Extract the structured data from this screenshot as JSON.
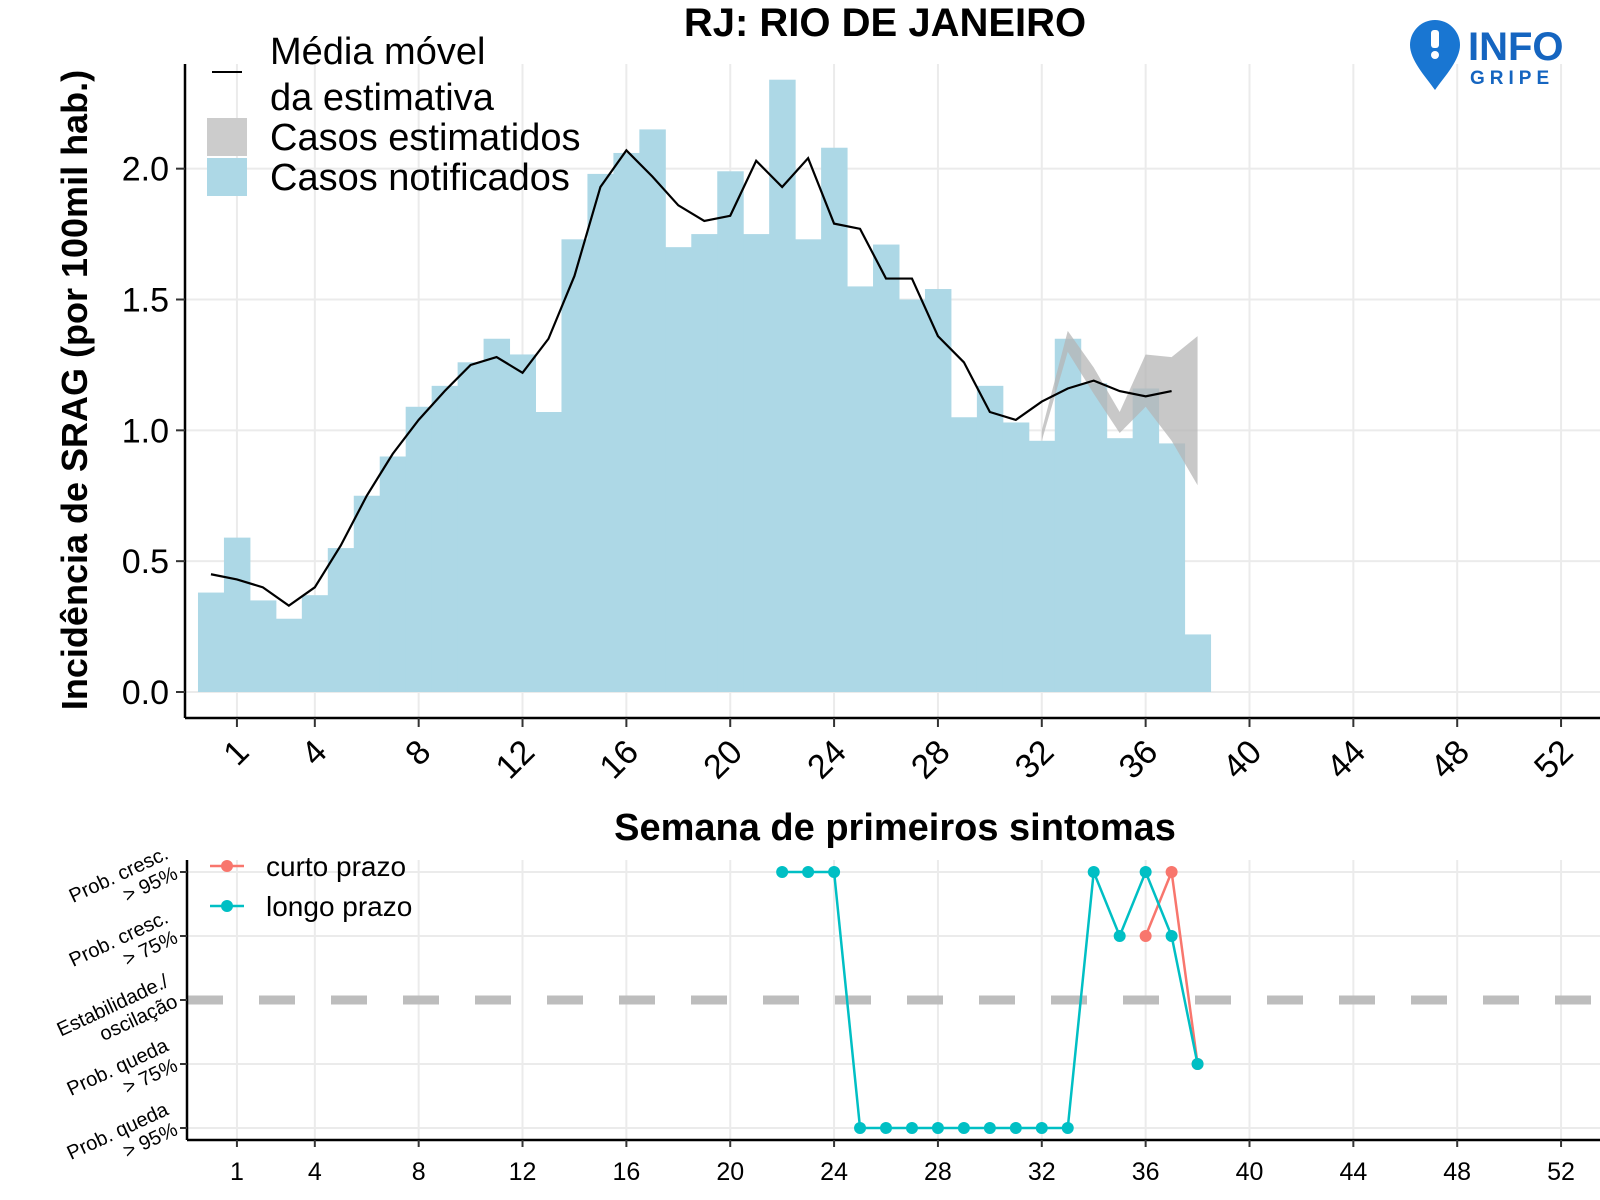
{
  "title": "RJ: RIO DE JANEIRO",
  "logo": {
    "line1": "INFO",
    "line2": "GRIPE",
    "color": "#1565c0"
  },
  "chart_data": [
    {
      "type": "bar",
      "ylabel": "Incidência de SRAG (por 100mil hab.)",
      "xlabel": "Semana de primeiros sintomas",
      "x_ticks": [
        1,
        4,
        8,
        12,
        16,
        20,
        24,
        28,
        32,
        36,
        40,
        44,
        48,
        52
      ],
      "x_range": [
        -1,
        53.5
      ],
      "y_ticks": [
        "0.0",
        "0.5",
        "1.0",
        "1.5",
        "2.0"
      ],
      "ylim": [
        0,
        2.4
      ],
      "grid": true,
      "legend_position": "top-left",
      "legend": {
        "moving_average": "Média móvel\nda estimativa",
        "estimated": "Casos estimatidos",
        "notified": "Casos notificados"
      },
      "colors": {
        "notified": "#add8e6",
        "estimated": "#b5b5b5",
        "moving_average": "#000000"
      },
      "notified": {
        "weeks": [
          0,
          1,
          2,
          3,
          4,
          5,
          6,
          7,
          8,
          9,
          10,
          11,
          12,
          13,
          14,
          15,
          16,
          17,
          18,
          19,
          20,
          21,
          22,
          23,
          24,
          25,
          26,
          27,
          28,
          29,
          30,
          31,
          32,
          33,
          34,
          35,
          36,
          37,
          38
        ],
        "values": [
          0.38,
          0.59,
          0.35,
          0.28,
          0.37,
          0.55,
          0.75,
          0.9,
          1.09,
          1.17,
          1.26,
          1.35,
          1.29,
          1.07,
          1.73,
          1.98,
          2.06,
          2.15,
          1.7,
          1.75,
          1.99,
          1.75,
          2.34,
          1.73,
          2.08,
          1.55,
          1.71,
          1.5,
          1.54,
          1.05,
          1.17,
          1.03,
          0.96,
          1.35,
          1.18,
          0.97,
          1.16,
          0.95,
          0.22
        ]
      },
      "estimated_band": {
        "weeks": [
          32,
          33,
          34,
          35,
          36,
          37,
          38
        ],
        "lower": [
          0.96,
          1.3,
          1.14,
          0.99,
          1.09,
          0.96,
          0.79
        ],
        "upper": [
          1.0,
          1.38,
          1.24,
          1.07,
          1.29,
          1.28,
          1.36
        ]
      },
      "moving_average": {
        "weeks": [
          0,
          1,
          2,
          3,
          4,
          5,
          6,
          7,
          8,
          9,
          10,
          11,
          12,
          13,
          14,
          15,
          16,
          17,
          18,
          19,
          20,
          21,
          22,
          23,
          24,
          25,
          26,
          27,
          28,
          29,
          30,
          31,
          32,
          33,
          34,
          35,
          36,
          37
        ],
        "values": [
          0.45,
          0.43,
          0.4,
          0.33,
          0.4,
          0.56,
          0.75,
          0.91,
          1.04,
          1.15,
          1.25,
          1.28,
          1.22,
          1.35,
          1.59,
          1.93,
          2.07,
          1.97,
          1.86,
          1.8,
          1.82,
          2.03,
          1.93,
          2.04,
          1.79,
          1.77,
          1.58,
          1.58,
          1.36,
          1.26,
          1.07,
          1.04,
          1.11,
          1.16,
          1.19,
          1.15,
          1.13,
          1.15
        ]
      }
    },
    {
      "type": "line",
      "x_ticks": [
        1,
        4,
        8,
        12,
        16,
        20,
        24,
        28,
        32,
        36,
        40,
        44,
        48,
        52
      ],
      "y_categories": [
        "Prob. queda\n> 95%",
        "Prob. queda\n> 75%",
        "Estabilidade./\noscilação",
        "Prob. cresc.\n> 75%",
        "Prob. cresc.\n> 95%"
      ],
      "series": [
        {
          "name": "curto prazo",
          "color": "#f8766d",
          "x": [
            36,
            37,
            38
          ],
          "y": [
            1,
            2,
            -1
          ]
        },
        {
          "name": "longo prazo",
          "color": "#00bfc4",
          "x": [
            22,
            23,
            24,
            25,
            26,
            27,
            28,
            29,
            30,
            31,
            32,
            33,
            34,
            35,
            36,
            37,
            38
          ],
          "y": [
            2,
            2,
            2,
            -2,
            -2,
            -2,
            -2,
            -2,
            -2,
            -2,
            -2,
            -2,
            2,
            1,
            2,
            1,
            -1
          ]
        }
      ],
      "reference_line": 0,
      "legend_position": "top-left"
    }
  ]
}
